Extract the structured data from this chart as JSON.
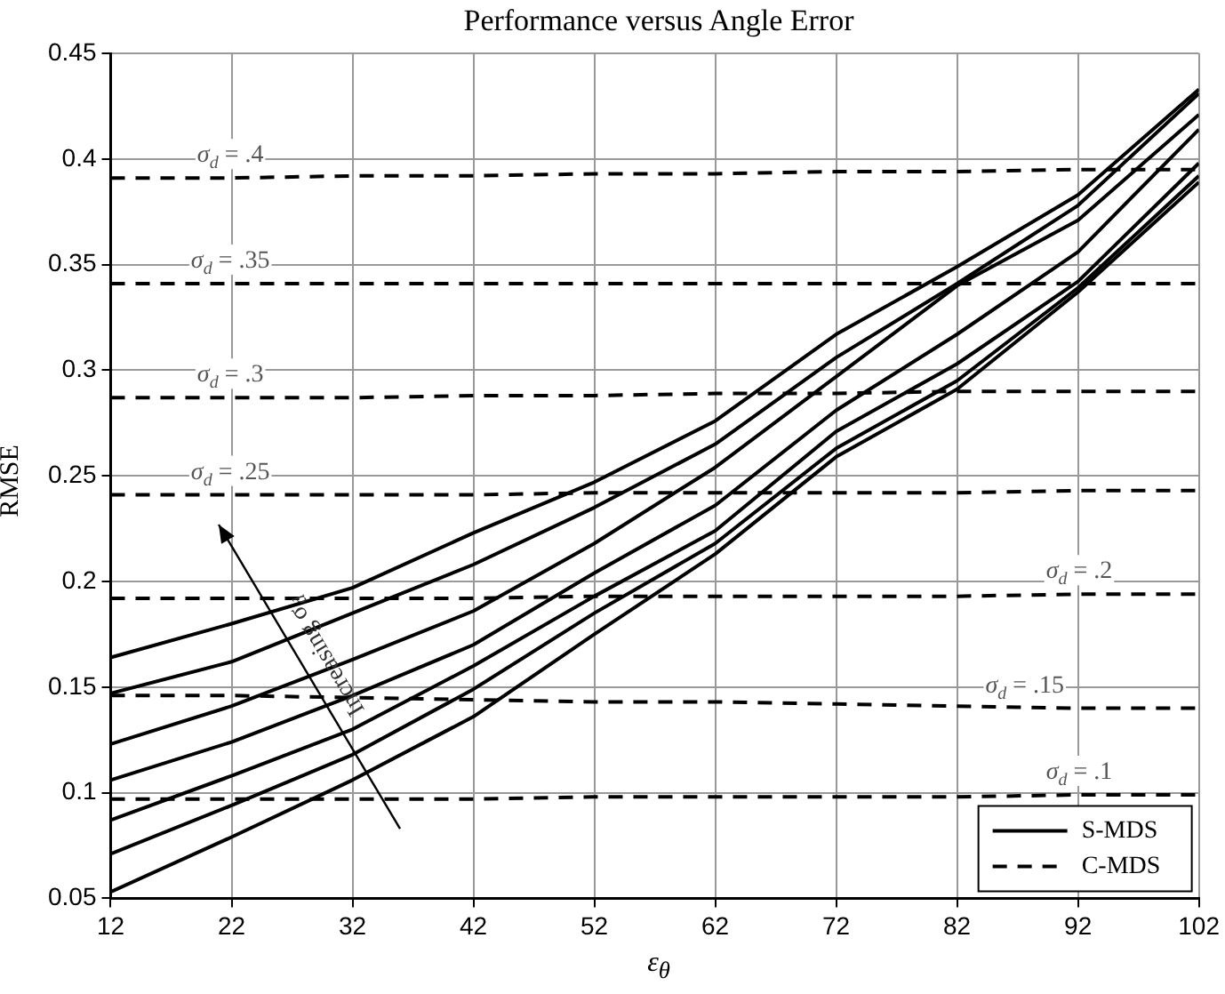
{
  "chart_data": {
    "type": "line",
    "title": "Performance versus Angle Error",
    "xlabel": "ε$_{θ}$",
    "ylabel": "RMSE",
    "x": [
      12,
      22,
      32,
      42,
      52,
      62,
      72,
      82,
      92,
      102
    ],
    "xlim": [
      12,
      102
    ],
    "xticks": [
      12,
      22,
      32,
      42,
      52,
      62,
      72,
      82,
      92,
      102
    ],
    "ylim": [
      0.05,
      0.45
    ],
    "yticks": [
      0.05,
      0.1,
      0.15,
      0.2,
      0.25,
      0.3,
      0.35,
      0.4,
      0.45
    ],
    "grid": true,
    "legend": "bottom right",
    "marker": "none",
    "series": [
      {
        "name": "S-MDS",
        "color": "#000000",
        "line_style": "solid",
        "values": [
          0.164,
          0.18,
          0.197,
          0.223,
          0.247,
          0.276,
          0.317,
          0.349,
          0.383,
          0.433
        ]
      },
      {
        "color": "#000000",
        "line_style": "solid",
        "values": [
          0.147,
          0.162,
          0.185,
          0.208,
          0.235,
          0.265,
          0.306,
          0.341,
          0.378,
          0.431
        ]
      },
      {
        "color": "#000000",
        "line_style": "solid",
        "values": [
          0.123,
          0.141,
          0.163,
          0.186,
          0.218,
          0.254,
          0.297,
          0.34,
          0.371,
          0.421
        ]
      },
      {
        "color": "#000000",
        "line_style": "solid",
        "values": [
          0.106,
          0.124,
          0.146,
          0.17,
          0.204,
          0.236,
          0.281,
          0.317,
          0.356,
          0.414
        ]
      },
      {
        "color": "#000000",
        "line_style": "solid",
        "values": [
          0.087,
          0.108,
          0.13,
          0.16,
          0.193,
          0.224,
          0.271,
          0.303,
          0.342,
          0.398
        ]
      },
      {
        "color": "#000000",
        "line_style": "solid",
        "values": [
          0.071,
          0.094,
          0.118,
          0.149,
          0.185,
          0.218,
          0.263,
          0.295,
          0.339,
          0.392
        ]
      },
      {
        "color": "#000000",
        "line_style": "solid",
        "values": [
          0.053,
          0.079,
          0.106,
          0.136,
          0.175,
          0.213,
          0.259,
          0.291,
          0.337,
          0.389
        ]
      },
      {
        "name": "C-MDS",
        "color": "#000000",
        "line_style": "dashed",
        "values": [
          0.391,
          0.391,
          0.392,
          0.392,
          0.393,
          0.393,
          0.394,
          0.394,
          0.395,
          0.395
        ]
      },
      {
        "color": "#000000",
        "line_style": "dashed",
        "values": [
          0.341,
          0.341,
          0.341,
          0.341,
          0.341,
          0.341,
          0.341,
          0.341,
          0.341,
          0.341
        ]
      },
      {
        "color": "#000000",
        "line_style": "dashed",
        "values": [
          0.287,
          0.287,
          0.287,
          0.288,
          0.288,
          0.289,
          0.289,
          0.29,
          0.29,
          0.29
        ]
      },
      {
        "color": "#000000",
        "line_style": "dashed",
        "values": [
          0.241,
          0.241,
          0.241,
          0.241,
          0.242,
          0.242,
          0.242,
          0.242,
          0.243,
          0.243
        ]
      },
      {
        "color": "#000000",
        "line_style": "dashed",
        "values": [
          0.192,
          0.192,
          0.192,
          0.192,
          0.193,
          0.193,
          0.193,
          0.193,
          0.194,
          0.194
        ]
      },
      {
        "color": "#000000",
        "line_style": "dashed",
        "values": [
          0.146,
          0.146,
          0.145,
          0.144,
          0.143,
          0.143,
          0.142,
          0.141,
          0.14,
          0.14
        ]
      },
      {
        "color": "#000000",
        "line_style": "dashed",
        "values": [
          0.097,
          0.097,
          0.097,
          0.097,
          0.098,
          0.098,
          0.098,
          0.098,
          0.099,
          0.099
        ]
      }
    ],
    "annotations": [
      "σ$_{d}$ = .4",
      "σ$_{d}$ = .35",
      "σ$_{d}$ = .3",
      "σ$_{d}$ = .25",
      "σ$_{d}$ = .2",
      "σ$_{d}$ = .15",
      "σ$_{d}$ = .1",
      "Increasing σ$_{d}$"
    ]
  }
}
